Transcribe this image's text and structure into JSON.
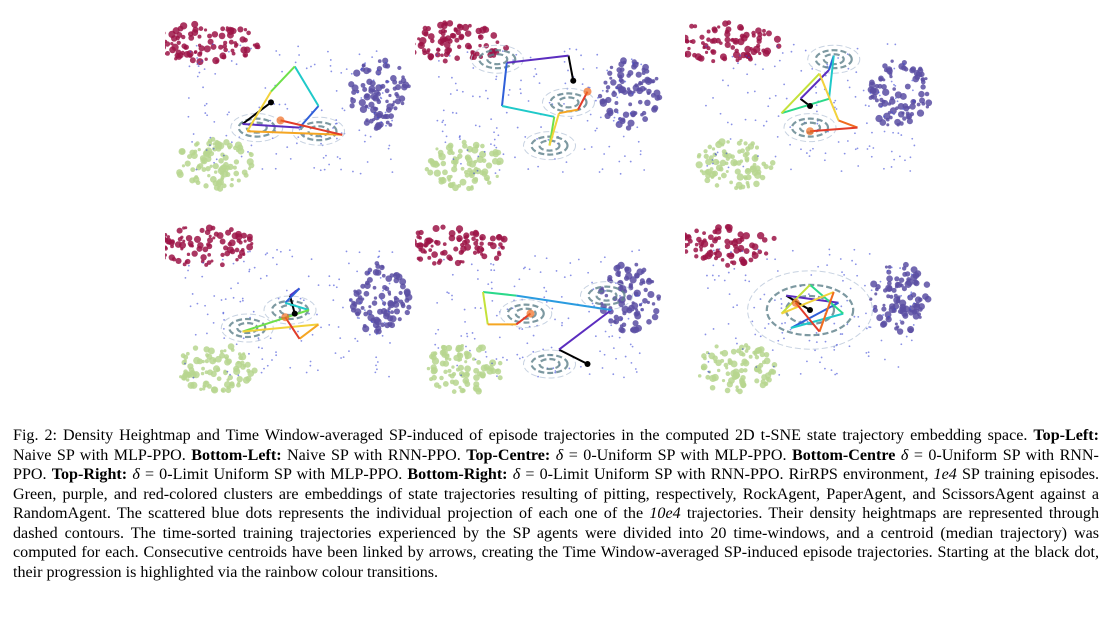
{
  "figure": {
    "panels": [
      {
        "id": "top-left",
        "trajectory": [
          [
            -0.2,
            0.05
          ],
          [
            -0.5,
            -0.25
          ],
          [
            0.1,
            -0.3
          ],
          [
            0.3,
            0.0
          ],
          [
            0.05,
            0.55
          ],
          [
            -0.2,
            0.2
          ],
          [
            -0.45,
            -0.35
          ],
          [
            0.55,
            -0.4
          ],
          [
            -0.1,
            -0.2
          ]
        ],
        "contours": [
          [
            -0.35,
            -0.3
          ],
          [
            0.3,
            -0.35
          ]
        ]
      },
      {
        "id": "top-centre",
        "trajectory": [
          [
            0.35,
            0.35
          ],
          [
            0.3,
            0.7
          ],
          [
            -0.35,
            0.6
          ],
          [
            -0.4,
            0.0
          ],
          [
            0.15,
            -0.15
          ],
          [
            0.1,
            -0.55
          ],
          [
            0.2,
            -0.1
          ],
          [
            0.4,
            -0.05
          ],
          [
            0.5,
            0.2
          ]
        ],
        "contours": [
          [
            -0.45,
            0.65
          ],
          [
            0.3,
            0.05
          ],
          [
            0.1,
            -0.55
          ]
        ]
      },
      {
        "id": "top-right",
        "trajectory": [
          [
            0.0,
            0.0
          ],
          [
            -0.1,
            0.1
          ],
          [
            0.2,
            0.5
          ],
          [
            0.25,
            0.7
          ],
          [
            0.2,
            0.1
          ],
          [
            -0.3,
            -0.1
          ],
          [
            0.1,
            0.45
          ],
          [
            0.3,
            -0.2
          ],
          [
            0.5,
            -0.3
          ],
          [
            0.0,
            -0.35
          ]
        ],
        "contours": [
          [
            0.25,
            0.65
          ],
          [
            0.0,
            -0.3
          ]
        ]
      },
      {
        "id": "bottom-left",
        "trajectory": [
          [
            0.05,
            -0.05
          ],
          [
            0.0,
            0.2
          ],
          [
            0.1,
            0.3
          ],
          [
            -0.05,
            0.1
          ],
          [
            0.2,
            0.0
          ],
          [
            -0.5,
            -0.3
          ],
          [
            0.3,
            -0.2
          ],
          [
            0.1,
            -0.4
          ],
          [
            -0.05,
            -0.1
          ]
        ],
        "contours": [
          [
            0.0,
            0.0
          ],
          [
            -0.45,
            -0.25
          ]
        ]
      },
      {
        "id": "bottom-centre",
        "trajectory": [
          [
            0.5,
            -0.75
          ],
          [
            0.2,
            -0.55
          ],
          [
            0.75,
            0.0
          ],
          [
            -0.25,
            0.2
          ],
          [
            -0.6,
            0.25
          ],
          [
            -0.55,
            -0.2
          ],
          [
            -0.25,
            -0.2
          ],
          [
            -0.1,
            -0.05
          ]
        ],
        "contours": [
          [
            0.7,
            0.2
          ],
          [
            0.1,
            -0.75
          ],
          [
            -0.15,
            -0.05
          ]
        ]
      },
      {
        "id": "bottom-right",
        "trajectory": [
          [
            0.0,
            0.0
          ],
          [
            -0.25,
            0.2
          ],
          [
            0.3,
            0.1
          ],
          [
            -0.2,
            -0.25
          ],
          [
            0.35,
            -0.05
          ],
          [
            0.0,
            0.35
          ],
          [
            -0.3,
            -0.05
          ],
          [
            0.25,
            0.25
          ],
          [
            0.1,
            -0.3
          ],
          [
            -0.15,
            0.1
          ]
        ],
        "contours": [
          [
            0.0,
            0.0
          ]
        ]
      }
    ],
    "colors": {
      "scissors": "#9c1447",
      "paper": "#5b4fa3",
      "rock": "#b7d68f",
      "dots": "#3a47d6",
      "contour": "#5c7f8a"
    }
  },
  "caption": {
    "fig_label": "Fig. 2:",
    "s1": "Density Heightmap and Time Window-averaged SP-induced of episode trajectories in the computed 2D t-SNE state trajectory embedding space.",
    "tl_label": "Top-Left:",
    "tl_text": "Naive SP with MLP-PPO.",
    "bl_label": "Bottom-Left:",
    "bl_text": "Naive SP with RNN-PPO.",
    "tc_label": "Top-Centre:",
    "delta": "δ",
    "tc_text": "= 0-Uniform SP with MLP-PPO.",
    "bc_label": "Bottom-Centre",
    "bc_text": "= 0-Uniform SP with RNN-PPO.",
    "tr_label": "Top-Right:",
    "tr_text": "= 0-Limit Uniform SP with MLP-PPO.",
    "br_label": "Bottom-Right:",
    "br_text": "= 0-Limit Uniform SP with RNN-PPO. RirRPS environment,",
    "e4_a": "1e4",
    "s_training": "SP training episodes. Green, purple, and red-colored clusters are embeddings of state trajectories resulting of pitting, respectively, RockAgent, PaperAgent, and ScissorsAgent against a RandomAgent. The scattered blue dots represents the individual projection of each one of the",
    "e4_b": "10e4",
    "s_end": "trajectories. Their density heightmaps are represented through dashed contours. The time-sorted training trajectories experienced by the SP agents were divided into 20 time-windows, and a centroid (median trajectory) was computed for each. Consecutive centroids have been linked by arrows, creating the Time Window-averaged SP-induced episode trajectories. Starting at the black dot, their progression is highlighted via the rainbow colour transitions."
  }
}
